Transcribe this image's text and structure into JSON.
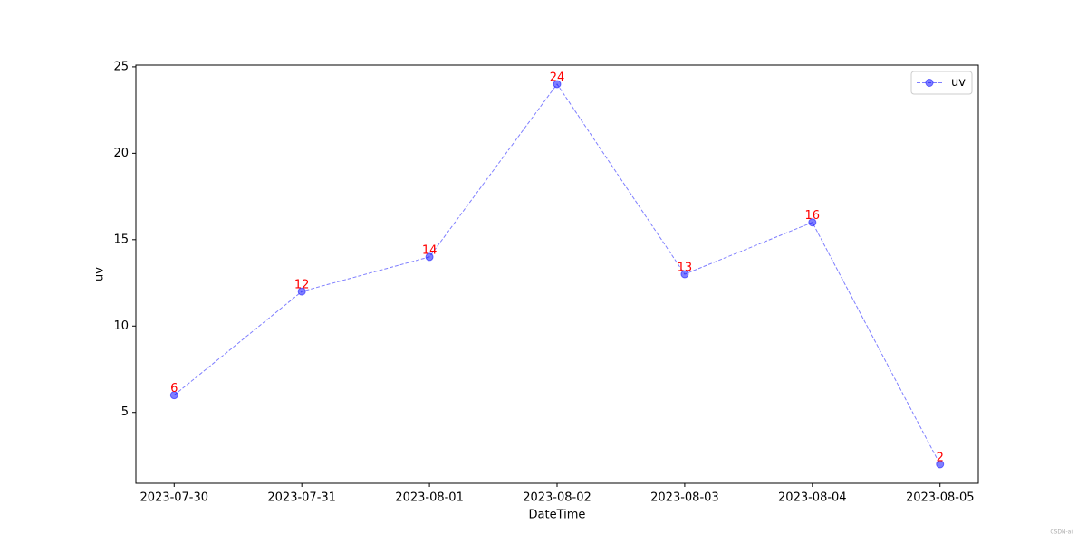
{
  "chart_data": {
    "type": "line",
    "x": [
      "2023-07-30",
      "2023-07-31",
      "2023-08-01",
      "2023-08-02",
      "2023-08-03",
      "2023-08-04",
      "2023-08-05"
    ],
    "series": [
      {
        "name": "uv",
        "color": "#0000ff",
        "values": [
          6,
          12,
          14,
          24,
          13,
          16,
          2
        ]
      }
    ],
    "ylim": [
      0.9,
      25.1
    ],
    "yticks": [
      5,
      10,
      15,
      20,
      25
    ],
    "x_label": "DateTime",
    "y_label": "uv",
    "value_label_color": "#ff0000",
    "legend": "upper right",
    "watermark": "CSDN-ai"
  }
}
